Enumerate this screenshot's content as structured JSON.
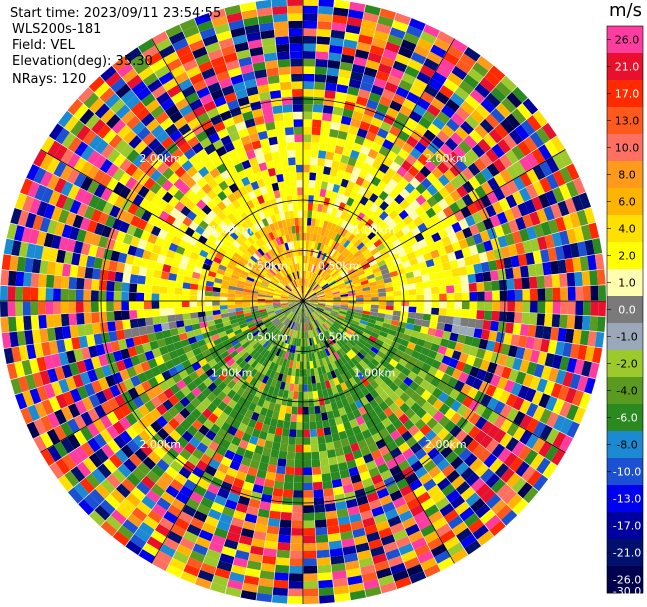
{
  "header": {
    "start_time": "Start time: 2023/09/11 23:54:55",
    "instrument": "WLS200s-181",
    "field": "Field: VEL",
    "elevation": "Elevation(deg): 35.30",
    "nrays": "NRays: 120"
  },
  "chart_data": {
    "type": "heatmap",
    "subtype": "ppi-polar",
    "field": "VEL",
    "units": "m/s",
    "n_rays": 120,
    "range_rings_km": [
      0.5,
      1.0,
      2.0
    ],
    "range_ring_labels": [
      "0.50km",
      "1.00km",
      "2.00km"
    ],
    "max_range_km": 3.0,
    "colorbar": {
      "label": "m/s",
      "ticks": [
        "26.0",
        "21.0",
        "17.0",
        "13.0",
        "10.0",
        "8.0",
        "6.0",
        "4.0",
        "2.0",
        "1.0",
        "0.0",
        "-1.0",
        "-2.0",
        "-4.0",
        "-6.0",
        "-8.0",
        "-10.0",
        "-13.0",
        "-17.0",
        "-21.0",
        "-26.0",
        "-30.0"
      ],
      "colors": [
        "#ff3ca0",
        "#e8102c",
        "#ff2a00",
        "#ff5a1e",
        "#ff7060",
        "#ff9a1a",
        "#ffb400",
        "#ffe000",
        "#ffff00",
        "#fffdb0",
        "#7a7a7a",
        "#9aa8ba",
        "#9cca2c",
        "#5a9a20",
        "#2a8a20",
        "#1c8ad2",
        "#1c50d2",
        "#0000f0",
        "#0000a0",
        "#00106c",
        "#000050"
      ]
    },
    "pattern_notes": "near field: orange/yellow positive velocities to north, green negative to south; far ranges noisy"
  }
}
